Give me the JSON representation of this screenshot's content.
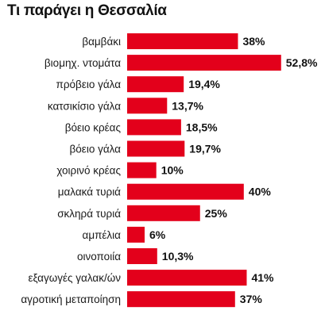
{
  "chart_data": {
    "type": "bar",
    "orientation": "horizontal",
    "title": "Τι παράγει η Θεσσαλία",
    "categories": [
      "βαμβάκι",
      "βιομηχ. ντομάτα",
      "πρόβειο γάλα",
      "κατσικίσιο γάλα",
      "βόειο κρέας",
      "βόειο γάλα",
      "χοιρινό κρέας",
      "μαλακά τυριά",
      "σκληρά τυριά",
      "αμπέλια",
      "οινοποιία",
      "εξαγωγές γαλακ/ών",
      "αγροτική μεταποίηση"
    ],
    "values": [
      38,
      52.8,
      19.4,
      13.7,
      18.5,
      19.7,
      10,
      40,
      25,
      6,
      10.3,
      41,
      37
    ],
    "value_labels": [
      "38%",
      "52,8%",
      "19,4%",
      "13,7%",
      "18,5%",
      "19,7%",
      "10%",
      "40%",
      "25%",
      "6%",
      "10,3%",
      "41%",
      "37%"
    ],
    "unit": "%",
    "bar_color": "#e3001b",
    "grid": false,
    "legend": "none"
  }
}
